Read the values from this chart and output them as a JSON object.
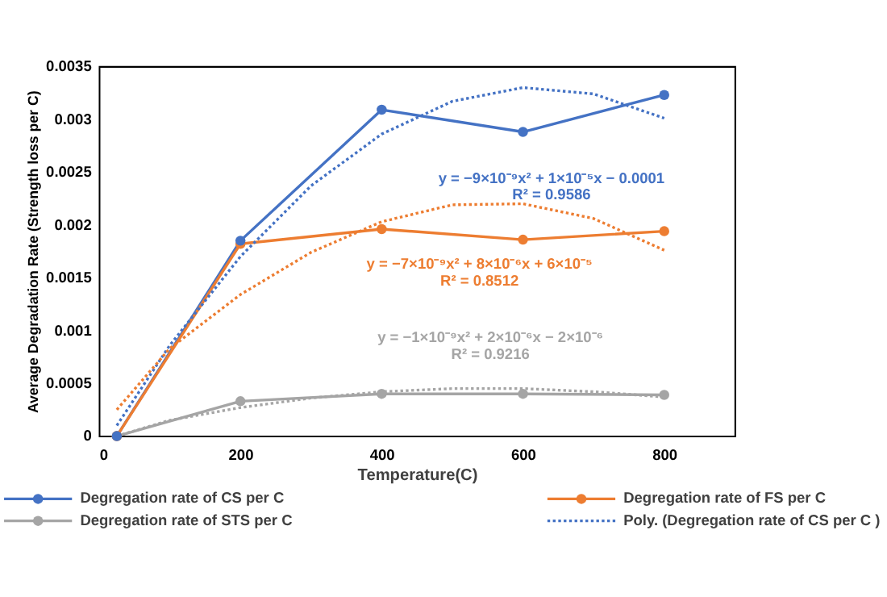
{
  "chart_data": {
    "type": "line",
    "xlabel": "Temperature(C)",
    "ylabel": "Average Degradation Rate (Strength loss per C)",
    "xlim": [
      0,
      900
    ],
    "xticks": [
      0,
      200,
      400,
      600,
      800
    ],
    "ylim": [
      0,
      0.0035
    ],
    "yticks": [
      0,
      0.0005,
      0.001,
      0.0015,
      0.002,
      0.0025,
      0.003,
      0.0035
    ],
    "grid": false,
    "legend": "bottom",
    "marker": "circle",
    "line_style": "solid",
    "x": [
      25,
      200,
      400,
      600,
      800
    ],
    "series": [
      {
        "name": "Degregation rate of CS per C",
        "color": "#4472c4",
        "values": [
          0,
          0.00185,
          0.00309,
          0.00288,
          0.00323
        ]
      },
      {
        "name": "Degregation rate of FS per C",
        "color": "#ed7d31",
        "values": [
          0,
          0.00182,
          0.00196,
          0.00186,
          0.00194
        ]
      },
      {
        "name": "Degregation rate of STS per C",
        "color": "#a5a5a5",
        "values": [
          0,
          0.00033,
          0.0004,
          0.0004,
          0.00039
        ]
      },
      {
        "name": "Poly. (Degregation rate of CS per C )",
        "type": "line",
        "marker": "none",
        "line_style": "dotted",
        "color": "#4472c4",
        "x": [
          25,
          100,
          200,
          300,
          400,
          500,
          600,
          700,
          800
        ],
        "values": [
          0.0001,
          0.00086,
          0.0017,
          0.00237,
          0.00286,
          0.00317,
          0.0033,
          0.00324,
          0.00301
        ]
      },
      {
        "type": "line",
        "marker": "none",
        "line_style": "dotted",
        "color": "#ed7d31",
        "x": [
          25,
          100,
          200,
          300,
          400,
          500,
          600,
          700,
          800
        ],
        "values": [
          0.00025,
          0.00083,
          0.00134,
          0.00174,
          0.00203,
          0.00219,
          0.0022,
          0.00206,
          0.00176
        ]
      },
      {
        "type": "line",
        "marker": "none",
        "line_style": "dotted",
        "color": "#a5a5a5",
        "x": [
          25,
          100,
          200,
          300,
          400,
          500,
          600,
          700,
          800
        ],
        "values": [
          0,
          0.00015,
          0.00027,
          0.00036,
          0.00042,
          0.00045,
          0.00045,
          0.00042,
          0.00037
        ]
      }
    ],
    "annotations": [
      "y = −9×10⁻⁹x² + 1×10⁻⁵x − 0.0001",
      "R² = 0.9586",
      "y = −7×10⁻⁹x² + 8×10⁻⁶x + 6×10⁻⁵",
      "R² = 0.8512",
      "y = −1×10⁻⁹x² + 2×10⁻⁶x − 2×10⁻⁶",
      "R² = 0.9216"
    ]
  }
}
